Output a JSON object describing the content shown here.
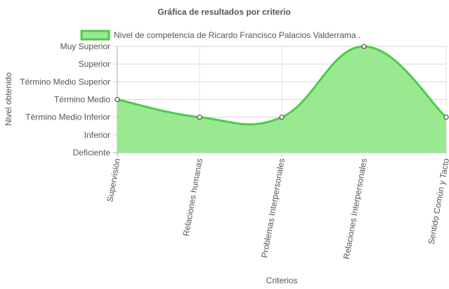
{
  "chart_data": {
    "type": "area",
    "title": "Gráfica de resultados por criterio",
    "xlabel": "Criterios",
    "ylabel": "Nivel obtenido",
    "categories": [
      "Supervisión",
      "Relaciones humanas",
      "Problemas Interpersonales",
      "Relaciones Interpersonales",
      "Sentido Común y Tacto"
    ],
    "y_levels": [
      "Deficiente",
      "Inferior",
      "Término Medio Inferior",
      "Término Medio",
      "Término Medio Superior",
      "Superior",
      "Muy Superior"
    ],
    "ylim": [
      0,
      6
    ],
    "grid": true,
    "legend_position": "top",
    "series": [
      {
        "name": "Nivel de competencia de Ricardo Francisco Palacios Valderrama .",
        "values": [
          3,
          2,
          2,
          6,
          2
        ],
        "fill_color": "#98e98f",
        "line_color": "#4ccb4c"
      }
    ]
  }
}
